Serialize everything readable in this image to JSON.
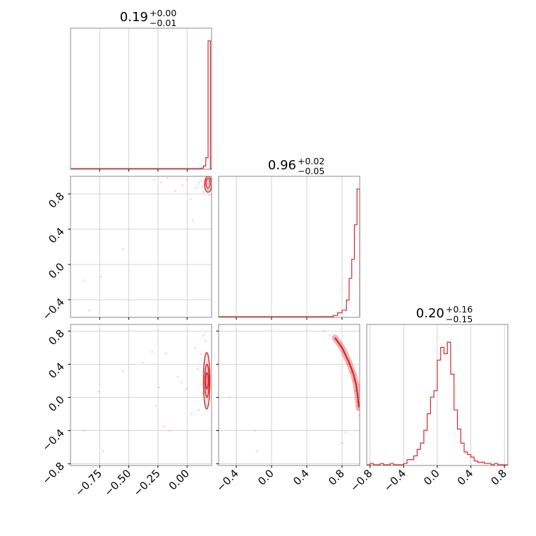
{
  "chart_data": {
    "type": "corner",
    "color": "#d62728",
    "grid": true,
    "panels": [
      {
        "id": "hist-1",
        "row": 0,
        "col": 0,
        "type": "hist",
        "title": {
          "value": "0.19",
          "upper": "+0.00",
          "lower": "−0.01"
        },
        "xlim": [
          -1.0,
          0.21
        ],
        "gridlines_x": [
          -0.75,
          -0.5,
          -0.25,
          0.0
        ],
        "bins_x": [
          0.12,
          0.14,
          0.16,
          0.18,
          0.2
        ],
        "bins_y": [
          0.003,
          0.02,
          0.085,
          1.0
        ]
      },
      {
        "id": "scatter-2-1",
        "row": 1,
        "col": 0,
        "type": "scatter",
        "xlim": [
          -1.0,
          0.21
        ],
        "ylim": [
          -0.6,
          1.0
        ],
        "gridlines_x": [
          -0.75,
          -0.5,
          -0.25,
          0.0
        ],
        "gridlines_y": [
          -0.4,
          0.0,
          0.4,
          0.8
        ],
        "yticks": [
          -0.4,
          0.0,
          0.4,
          0.8
        ],
        "yticklabels": [
          "−0.4",
          "0.0",
          "0.4",
          "0.8"
        ],
        "points": [
          [
            -0.88,
            -0.18
          ],
          [
            -0.84,
            -0.52
          ],
          [
            -0.74,
            -0.14
          ],
          [
            -0.55,
            0.17
          ],
          [
            -0.28,
            0.96
          ],
          [
            -0.22,
            0.93
          ],
          [
            -0.17,
            0.98
          ],
          [
            -0.1,
            0.83
          ],
          [
            -0.04,
            0.9
          ],
          [
            0.0,
            0.96
          ],
          [
            0.03,
            0.74
          ],
          [
            0.05,
            0.5
          ],
          [
            0.08,
            0.87
          ],
          [
            0.1,
            0.93
          ],
          [
            0.12,
            0.95
          ],
          [
            0.13,
            0.88
          ],
          [
            0.14,
            0.82
          ],
          [
            0.15,
            0.9
          ],
          [
            0.16,
            0.97
          ],
          [
            0.17,
            0.85
          ],
          [
            0.18,
            0.92
          ],
          [
            0.19,
            0.79
          ],
          [
            0.2,
            0.9
          ]
        ],
        "contours": [
          {
            "cx": 0.18,
            "cy": 0.92,
            "rx": 0.018,
            "ry": 0.055
          },
          {
            "cx": 0.18,
            "cy": 0.91,
            "rx": 0.03,
            "ry": 0.09
          }
        ]
      },
      {
        "id": "hist-2",
        "row": 1,
        "col": 1,
        "type": "hist",
        "title": {
          "value": "0.96",
          "upper": "+0.02",
          "lower": "−0.05"
        },
        "xlim": [
          -0.6,
          1.0
        ],
        "gridlines_x": [
          -0.4,
          0.0,
          0.4,
          0.8
        ],
        "bins_x": [
          0.7,
          0.75,
          0.8,
          0.85,
          0.88,
          0.91,
          0.94,
          0.97,
          1.0
        ],
        "bins_y": [
          0.01,
          0.03,
          0.05,
          0.13,
          0.3,
          0.45,
          0.72,
          1.0
        ]
      },
      {
        "id": "scatter-3-1",
        "row": 2,
        "col": 0,
        "type": "scatter",
        "xlim": [
          -1.0,
          0.21
        ],
        "ylim": [
          -0.82,
          0.88
        ],
        "gridlines_x": [
          -0.75,
          -0.5,
          -0.25,
          0.0
        ],
        "gridlines_y": [
          -0.8,
          -0.4,
          0.0,
          0.4,
          0.8
        ],
        "yticks": [
          -0.8,
          -0.4,
          0.0,
          0.4,
          0.8
        ],
        "yticklabels": [
          "−0.8",
          "−0.4",
          "0.0",
          "0.4",
          "0.8"
        ],
        "xticks": [
          -0.75,
          -0.5,
          -0.25,
          0.0
        ],
        "xticklabels": [
          "−0.75",
          "−0.50",
          "−0.25",
          "0.00"
        ],
        "points": [
          [
            -0.88,
            -0.4
          ],
          [
            -0.76,
            0.07
          ],
          [
            -0.72,
            -0.65
          ],
          [
            -0.55,
            0.32
          ],
          [
            -0.38,
            0.42
          ],
          [
            -0.3,
            0.55
          ],
          [
            -0.27,
            -0.1
          ],
          [
            -0.24,
            0.12
          ],
          [
            -0.2,
            -0.35
          ],
          [
            -0.18,
            0.53
          ],
          [
            -0.15,
            -0.4
          ],
          [
            -0.08,
            0.25
          ],
          [
            -0.05,
            0.18
          ],
          [
            0.0,
            0.1
          ],
          [
            0.04,
            -0.2
          ],
          [
            0.07,
            0.6
          ],
          [
            0.09,
            0.35
          ],
          [
            0.1,
            -0.15
          ],
          [
            0.12,
            0.52
          ],
          [
            0.13,
            0.05
          ],
          [
            0.14,
            0.75
          ],
          [
            0.15,
            -0.05
          ],
          [
            0.16,
            0.68
          ],
          [
            0.17,
            -0.1
          ]
        ],
        "contours": [
          {
            "cx": 0.17,
            "cy": 0.2,
            "rx": 0.01,
            "ry": 0.1
          },
          {
            "cx": 0.17,
            "cy": 0.2,
            "rx": 0.018,
            "ry": 0.2
          },
          {
            "cx": 0.168,
            "cy": 0.2,
            "rx": 0.028,
            "ry": 0.34
          }
        ]
      },
      {
        "id": "scatter-3-2",
        "row": 2,
        "col": 1,
        "type": "scatter",
        "xlim": [
          -0.6,
          1.0
        ],
        "ylim": [
          -0.82,
          0.88
        ],
        "gridlines_x": [
          -0.4,
          0.0,
          0.4,
          0.8
        ],
        "gridlines_y": [
          -0.8,
          -0.4,
          0.0,
          0.4,
          0.8
        ],
        "xticks": [
          -0.4,
          0.0,
          0.4,
          0.8
        ],
        "xticklabels": [
          "−0.4",
          "0.0",
          "0.4",
          "0.8"
        ],
        "points": [
          [
            -0.48,
            0.0
          ],
          [
            -0.19,
            -0.4
          ],
          [
            -0.17,
            -0.65
          ],
          [
            0.6,
            0.8
          ],
          [
            0.66,
            0.75
          ],
          [
            0.72,
            0.7
          ],
          [
            0.78,
            0.62
          ],
          [
            0.83,
            0.52
          ],
          [
            0.87,
            0.4
          ],
          [
            0.9,
            0.3
          ],
          [
            0.93,
            0.2
          ],
          [
            0.95,
            0.08
          ],
          [
            0.97,
            -0.05
          ],
          [
            0.98,
            -0.15
          ],
          [
            0.99,
            -0.22
          ],
          [
            0.84,
            -0.42
          ],
          [
            0.8,
            -0.55
          ]
        ],
        "contour_band": [
          [
            0.72,
            0.72
          ],
          [
            0.8,
            0.6
          ],
          [
            0.88,
            0.42
          ],
          [
            0.93,
            0.28
          ],
          [
            0.96,
            0.15
          ],
          [
            0.98,
            0.0
          ],
          [
            0.99,
            -0.12
          ]
        ]
      },
      {
        "id": "hist-3",
        "row": 2,
        "col": 2,
        "type": "hist",
        "title": {
          "value": "0.20",
          "upper": "+0.16",
          "lower": "−0.15"
        },
        "xlim": [
          -0.84,
          0.84
        ],
        "gridlines_x": [
          -0.8,
          -0.4,
          0.0,
          0.4,
          0.8
        ],
        "xticks": [
          -0.8,
          -0.4,
          0.0,
          0.4,
          0.8
        ],
        "xticklabels": [
          "−0.8",
          "−0.4",
          "0.0",
          "0.4",
          "0.8"
        ],
        "bins_x": [
          -0.84,
          -0.8,
          -0.76,
          -0.72,
          -0.68,
          -0.64,
          -0.6,
          -0.56,
          -0.52,
          -0.48,
          -0.44,
          -0.4,
          -0.36,
          -0.32,
          -0.28,
          -0.24,
          -0.2,
          -0.16,
          -0.12,
          -0.08,
          -0.04,
          0.0,
          0.04,
          0.08,
          0.12,
          0.16,
          0.2,
          0.24,
          0.28,
          0.32,
          0.36,
          0.4,
          0.44,
          0.48,
          0.52,
          0.56,
          0.6,
          0.64,
          0.68,
          0.72,
          0.76,
          0.8,
          0.84
        ],
        "bins_y": [
          0.0,
          0.01,
          0.0,
          0.0,
          0.01,
          0.0,
          0.0,
          0.01,
          0.0,
          0.0,
          0.0,
          0.01,
          0.04,
          0.04,
          0.07,
          0.12,
          0.17,
          0.27,
          0.4,
          0.53,
          0.58,
          0.82,
          0.92,
          0.87,
          0.96,
          0.71,
          0.43,
          0.28,
          0.17,
          0.1,
          0.08,
          0.06,
          0.03,
          0.02,
          0.02,
          0.01,
          0.01,
          0.0,
          0.01,
          0.0,
          0.0,
          0.0
        ]
      }
    ]
  }
}
